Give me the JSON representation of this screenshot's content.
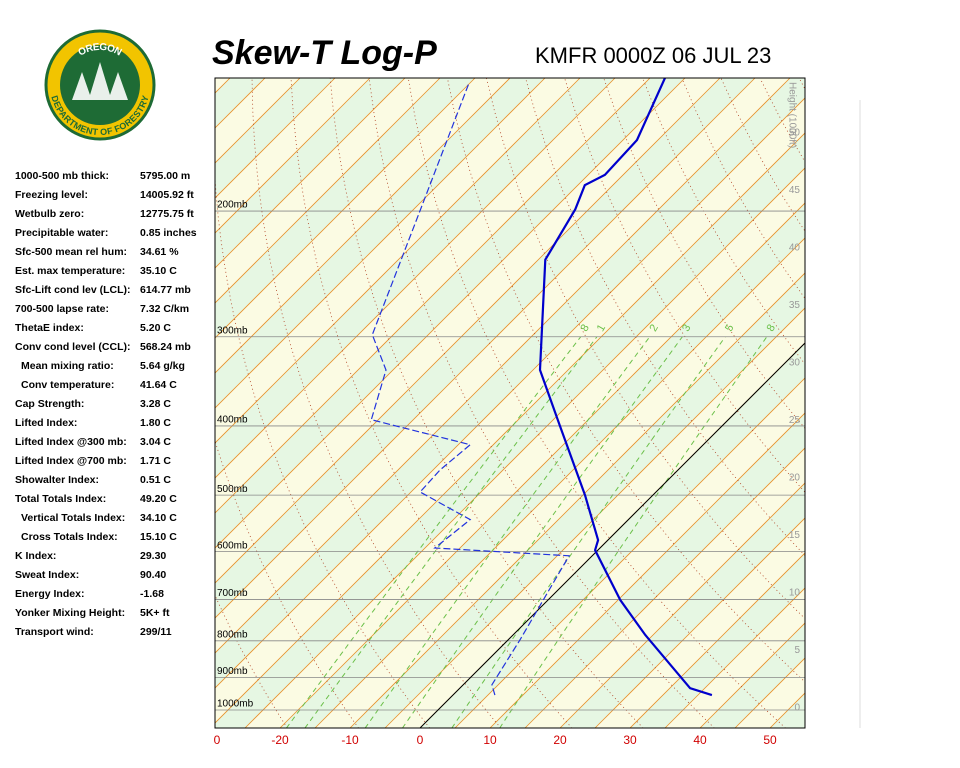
{
  "logo": {
    "top": "OREGON",
    "bottom": "DEPARTMENT OF FORESTRY"
  },
  "stats": [
    {
      "label": "1000-500 mb thick:",
      "value": "5795.00 m"
    },
    {
      "label": "Freezing level:",
      "value": "14005.92 ft"
    },
    {
      "label": "Wetbulb zero:",
      "value": "12775.75 ft"
    },
    {
      "label": "Precipitable water:",
      "value": "0.85 inches"
    },
    {
      "label": "Sfc-500 mean rel hum:",
      "value": "34.61 %"
    },
    {
      "label": "Est. max temperature:",
      "value": "35.10 C"
    },
    {
      "label": "Sfc-Lift cond lev (LCL):",
      "value": "614.77 mb"
    },
    {
      "label": "700-500 lapse rate:",
      "value": "7.32 C/km"
    },
    {
      "label": "ThetaE index:",
      "value": "5.20 C"
    },
    {
      "label": "Conv cond level (CCL):",
      "value": "568.24 mb"
    },
    {
      "label": "Mean mixing ratio:",
      "value": "5.64 g/kg",
      "indent": true
    },
    {
      "label": "Conv temperature:",
      "value": "41.64 C",
      "indent": true
    },
    {
      "label": "Cap Strength:",
      "value": "3.28 C"
    },
    {
      "label": "Lifted Index:",
      "value": "1.80 C"
    },
    {
      "label": "Lifted Index @300 mb:",
      "value": "3.04 C"
    },
    {
      "label": "Lifted Index @700 mb:",
      "value": "1.71 C"
    },
    {
      "label": "Showalter Index:",
      "value": "0.51 C"
    },
    {
      "label": "Total Totals Index:",
      "value": "49.20 C"
    },
    {
      "label": "Vertical Totals Index:",
      "value": "34.10 C",
      "indent": true
    },
    {
      "label": "Cross Totals Index:",
      "value": "15.10 C",
      "indent": true
    },
    {
      "label": "K Index:",
      "value": "29.30"
    },
    {
      "label": "Sweat Index:",
      "value": "90.40"
    },
    {
      "label": "Energy Index:",
      "value": "-1.68"
    },
    {
      "label": "Yonker Mixing Height:",
      "value": "5K+ ft"
    },
    {
      "label": "Transport wind:",
      "value": "299/11"
    }
  ],
  "chart_data": {
    "type": "skewt",
    "title": "Skew-T Log-P",
    "subtitle": "KMFR 0000Z 06 JUL 23",
    "xticks": [
      {
        "value": -29,
        "label": "0"
      },
      -20,
      -10,
      0,
      10,
      20,
      30,
      40,
      50
    ],
    "pressure_levels": [
      {
        "value": 200,
        "label": "200mb"
      },
      {
        "value": 300,
        "label": "300mb"
      },
      {
        "value": 400,
        "label": "400mb"
      },
      {
        "value": 500,
        "label": "500mb"
      },
      {
        "value": 600,
        "label": "600mb"
      },
      {
        "value": 700,
        "label": "700mb"
      },
      {
        "value": 800,
        "label": "800mb"
      },
      {
        "value": 900,
        "label": "900mb"
      },
      {
        "value": 1000,
        "label": "1000mb"
      }
    ],
    "height_label": "Height (1000ft)",
    "height_ticks": [
      0,
      5,
      10,
      15,
      20,
      25,
      30,
      35,
      40,
      45,
      50
    ],
    "mixing_ratios": [
      {
        "value": 0.8,
        "label": "8"
      },
      1,
      2,
      3,
      5,
      8
    ],
    "series": [
      {
        "color": "#0000cc",
        "pressure": [
          953,
          932,
          785,
          701,
          597,
          578,
          500,
          399,
          334,
          234,
          199,
          184,
          178,
          159,
          130
        ],
        "values": [
          37.0,
          32.9,
          18.9,
          10.3,
          -0.4,
          -1.4,
          -9.7,
          -23.3,
          -34,
          -49,
          -51.9,
          -54,
          -52.6,
          -53,
          -57.9
        ]
      },
      {
        "color": "#2233dd",
        "pressure": [
          953,
          922,
          798,
          712,
          608,
          593,
          541,
          495,
          461,
          425,
          392,
          334,
          298,
          199,
          133
        ],
        "values": [
          6,
          4.1,
          1.7,
          -0.4,
          -3.3,
          -23.6,
          -22.6,
          -33.7,
          -34,
          -33.3,
          -51,
          -56,
          -63,
          -74,
          -85
        ]
      }
    ]
  }
}
